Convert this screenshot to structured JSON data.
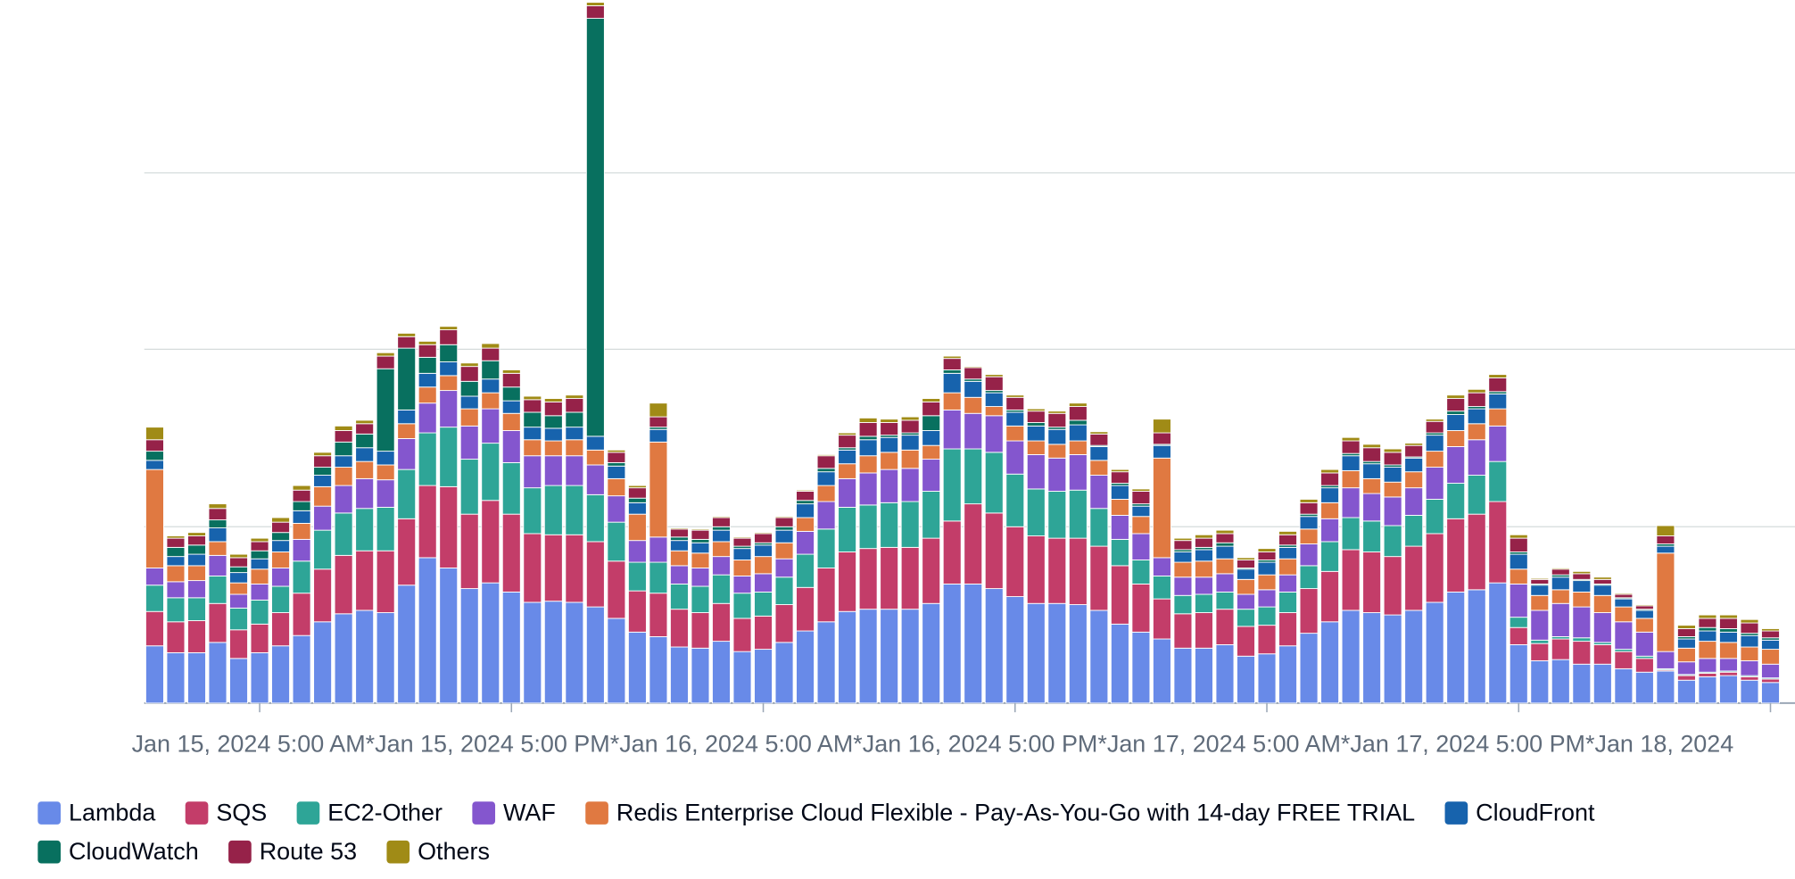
{
  "chart_data": {
    "type": "stacked-bar",
    "categories": [
      null,
      null,
      null,
      null,
      null,
      "Jan 15, 2024 5:00 AM*",
      null,
      null,
      null,
      null,
      null,
      null,
      null,
      null,
      null,
      null,
      null,
      "Jan 15, 2024 5:00 PM*",
      null,
      null,
      null,
      null,
      null,
      null,
      null,
      null,
      null,
      null,
      null,
      "Jan 16, 2024 5:00 AM*",
      null,
      null,
      null,
      null,
      null,
      null,
      null,
      null,
      null,
      null,
      null,
      "Jan 16, 2024 5:00 PM*",
      null,
      null,
      null,
      null,
      null,
      null,
      null,
      null,
      null,
      null,
      null,
      "Jan 17, 2024 5:00 AM*",
      null,
      null,
      null,
      null,
      null,
      null,
      null,
      null,
      null,
      null,
      null,
      "Jan 17, 2024 5:00 PM*",
      null,
      null,
      null,
      null,
      null,
      null,
      null,
      null,
      null,
      null,
      null,
      "Jan 18, 2024"
    ],
    "series": [
      {
        "name": "Lambda",
        "color": "#688ae8",
        "values": [
          50,
          44,
          44,
          53,
          39,
          44,
          50,
          59,
          71,
          78,
          81,
          79,
          103,
          127,
          118,
          100,
          105,
          97,
          88,
          89,
          88,
          84,
          74,
          62,
          58,
          49,
          48,
          54,
          45,
          47,
          53,
          63,
          71,
          80,
          82,
          82,
          82,
          87,
          104,
          104,
          100,
          93,
          87,
          87,
          86,
          81,
          69,
          62,
          56,
          48,
          48,
          51,
          41,
          43,
          50,
          61,
          71,
          81,
          79,
          77,
          81,
          88,
          97,
          99,
          105,
          51,
          37,
          38,
          34,
          34,
          30,
          27,
          28,
          20,
          23,
          24,
          20,
          18
        ]
      },
      {
        "name": "SQS",
        "color": "#c33d69",
        "values": [
          30,
          27,
          28,
          34,
          25,
          25,
          29,
          37,
          46,
          51,
          52,
          54,
          58,
          63,
          71,
          65,
          72,
          68,
          60,
          58,
          59,
          57,
          50,
          36,
          38,
          33,
          31,
          33,
          29,
          29,
          33,
          38,
          47,
          52,
          53,
          54,
          54,
          57,
          55,
          70,
          66,
          61,
          59,
          57,
          58,
          56,
          51,
          42,
          35,
          30,
          31,
          31,
          26,
          25,
          29,
          39,
          44,
          53,
          53,
          51,
          56,
          60,
          64,
          66,
          71,
          15,
          15,
          18,
          20,
          17,
          15,
          12,
          1,
          4,
          3,
          3,
          3,
          3
        ]
      },
      {
        "name": "EC2-Other",
        "color": "#2ea597",
        "values": [
          23,
          21,
          20,
          24,
          19,
          21,
          23,
          28,
          34,
          37,
          37,
          38,
          43,
          46,
          52,
          48,
          50,
          45,
          40,
          43,
          43,
          41,
          34,
          25,
          27,
          22,
          23,
          25,
          22,
          21,
          24,
          29,
          34,
          39,
          38,
          39,
          40,
          41,
          63,
          48,
          53,
          46,
          41,
          41,
          42,
          33,
          23,
          21,
          20,
          16,
          16,
          15,
          15,
          16,
          18,
          20,
          26,
          28,
          27,
          27,
          27,
          30,
          31,
          34,
          35,
          9,
          3,
          2,
          3,
          2,
          2,
          2,
          1,
          1,
          1,
          1,
          1,
          1
        ]
      },
      {
        "name": "WAF",
        "color": "#8456ce",
        "values": [
          15,
          14,
          15,
          18,
          12,
          14,
          16,
          19,
          21,
          24,
          26,
          24,
          27,
          26,
          32,
          29,
          30,
          28,
          28,
          26,
          26,
          26,
          23,
          19,
          22,
          16,
          16,
          16,
          15,
          16,
          16,
          20,
          24,
          25,
          28,
          29,
          29,
          28,
          34,
          31,
          32,
          29,
          30,
          29,
          31,
          29,
          21,
          23,
          16,
          16,
          15,
          16,
          13,
          15,
          15,
          19,
          20,
          26,
          24,
          25,
          24,
          28,
          32,
          31,
          31,
          29,
          26,
          29,
          27,
          26,
          24,
          21,
          15,
          11,
          12,
          11,
          13,
          12
        ]
      },
      {
        "name": "Redis Enterprise Cloud Flexible - Pay-As-You-Go with 14-day FREE TRIAL",
        "color": "#e07941",
        "values": [
          86,
          14,
          13,
          12,
          10,
          13,
          14,
          14,
          17,
          16,
          15,
          13,
          13,
          14,
          13,
          15,
          14,
          15,
          14,
          13,
          14,
          13,
          15,
          23,
          83,
          13,
          13,
          13,
          14,
          15,
          14,
          12,
          14,
          13,
          15,
          15,
          16,
          12,
          15,
          14,
          8,
          13,
          12,
          12,
          12,
          13,
          14,
          15,
          87,
          13,
          14,
          13,
          13,
          13,
          14,
          13,
          14,
          15,
          13,
          13,
          14,
          14,
          14,
          14,
          15,
          13,
          13,
          12,
          13,
          15,
          13,
          12,
          86,
          12,
          15,
          14,
          12,
          13
        ]
      },
      {
        "name": "CloudFront",
        "color": "#1763ad",
        "values": [
          8,
          8,
          10,
          12,
          9,
          9,
          10,
          11,
          10,
          10,
          12,
          12,
          12,
          12,
          12,
          11,
          12,
          11,
          11,
          11,
          11,
          12,
          11,
          10,
          11,
          9,
          9,
          10,
          10,
          10,
          11,
          12,
          12,
          12,
          14,
          13,
          13,
          13,
          17,
          14,
          12,
          12,
          13,
          13,
          14,
          12,
          12,
          9,
          11,
          9,
          10,
          11,
          9,
          11,
          10,
          11,
          13,
          13,
          13,
          13,
          12,
          14,
          14,
          13,
          13,
          13,
          9,
          11,
          10,
          9,
          7,
          7,
          6,
          8,
          9,
          9,
          10,
          8
        ]
      },
      {
        "name": "CloudWatch",
        "color": "#08705f",
        "values": [
          8,
          8,
          8,
          7,
          5,
          7,
          7,
          8,
          7,
          12,
          12,
          72,
          54,
          14,
          15,
          13,
          16,
          12,
          13,
          11,
          13,
          365,
          3,
          4,
          2,
          3,
          3,
          3,
          2,
          2,
          3,
          3,
          3,
          2,
          3,
          2,
          2,
          13,
          3,
          2,
          2,
          2,
          3,
          2,
          4,
          1,
          2,
          2,
          1,
          2,
          2,
          3,
          1,
          2,
          2,
          2,
          2,
          2,
          2,
          2,
          1,
          2,
          3,
          2,
          2,
          2,
          1,
          2,
          1,
          1,
          1,
          1,
          2,
          2,
          3,
          3,
          2,
          2
        ]
      },
      {
        "name": "Route 53",
        "color": "#962249",
        "values": [
          10,
          8,
          8,
          10,
          8,
          8,
          9,
          10,
          10,
          10,
          9,
          11,
          10,
          11,
          13,
          13,
          11,
          12,
          11,
          12,
          12,
          11,
          9,
          9,
          9,
          7,
          8,
          8,
          7,
          8,
          8,
          8,
          11,
          11,
          12,
          11,
          11,
          12,
          10,
          10,
          12,
          11,
          10,
          12,
          12,
          10,
          10,
          11,
          10,
          8,
          8,
          8,
          7,
          7,
          9,
          10,
          11,
          11,
          12,
          11,
          10,
          10,
          11,
          12,
          12,
          12,
          4,
          5,
          5,
          4,
          3,
          3,
          7,
          7,
          8,
          9,
          9,
          6
        ]
      },
      {
        "name": "Others",
        "color": "#a08b16",
        "values": [
          11,
          2,
          3,
          4,
          3,
          3,
          4,
          4,
          3,
          4,
          3,
          3,
          3,
          3,
          3,
          3,
          4,
          3,
          3,
          3,
          3,
          3,
          2,
          2,
          12,
          1,
          1,
          1,
          1,
          1,
          1,
          1,
          1,
          2,
          4,
          3,
          3,
          3,
          2,
          1,
          2,
          2,
          2,
          2,
          3,
          2,
          2,
          2,
          12,
          2,
          3,
          3,
          2,
          3,
          3,
          3,
          3,
          3,
          3,
          3,
          2,
          2,
          3,
          3,
          3,
          3,
          1,
          1,
          2,
          2,
          1,
          1,
          9,
          3,
          3,
          3,
          3,
          2
        ]
      }
    ],
    "ylim": [
      0,
      614
    ],
    "yticks": [
      0,
      154,
      309,
      463
    ],
    "grid": true
  }
}
